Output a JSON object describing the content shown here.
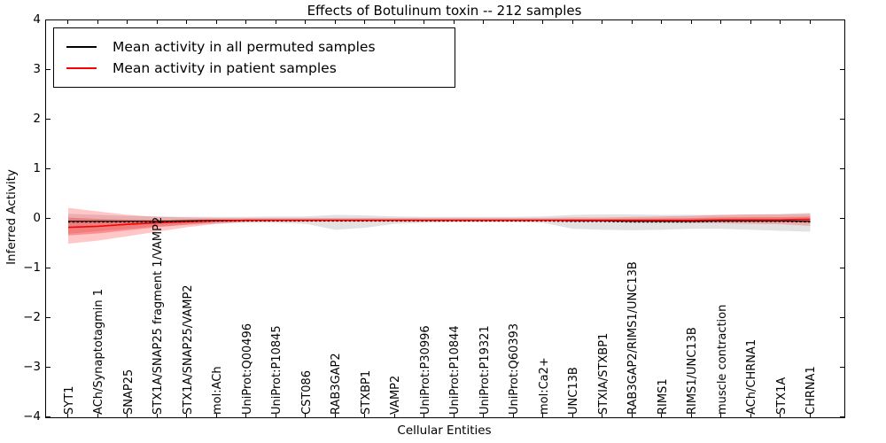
{
  "title": "Effects of Botulinum toxin -- 212 samples",
  "axes": {
    "ylabel": "Inferred Activity",
    "xlabel": "Cellular Entities",
    "ytick_labels": [
      "4",
      "3",
      "2",
      "1",
      "0",
      "−1",
      "−2",
      "−3",
      "−4"
    ],
    "ytick_values": [
      4,
      3,
      2,
      1,
      0,
      -1,
      -2,
      -3,
      -4
    ]
  },
  "legend": {
    "items": [
      {
        "label": "Mean activity in all permuted samples",
        "color": "#000000"
      },
      {
        "label": "Mean activity in patient samples",
        "color": "#ff0000"
      }
    ]
  },
  "colors": {
    "permuted_line": "#000000",
    "patient_line": "#ff0000",
    "permuted_band": "#bbbbbb",
    "patient_band": "#ff0000"
  },
  "chart_data": {
    "type": "line",
    "title": "Effects of Botulinum toxin -- 212 samples",
    "xlabel": "Cellular Entities",
    "ylabel": "Inferred Activity",
    "ylim": [
      -4,
      4
    ],
    "grid": false,
    "legend_position": "upper left",
    "categories": [
      "SYT1",
      "ACh/Synaptotagmin 1",
      "SNAP25",
      "STX1A/SNAP25 fragment 1/VAMP2",
      "STX1A/SNAP25/VAMP2",
      "mol:ACh",
      "UniProt:Q00496",
      "UniProt:P10845",
      "CST086",
      "RAB3GAP2",
      "STXBP1",
      "VAMP2",
      "UniProt:P30996",
      "UniProt:P10844",
      "UniProt:P19321",
      "UniProt:Q60393",
      "mol:Ca2+",
      "UNC13B",
      "STXIA/STXBP1",
      "RAB3GAP2/RIMS1/UNC13B",
      "RIMS1",
      "RIMS1/UNC13B",
      "muscle contraction",
      "ACh/CHRNA1",
      "STX1A",
      "CHRNA1"
    ],
    "series": [
      {
        "name": "Mean activity in all permuted samples",
        "color": "#000000",
        "values": [
          -0.05,
          -0.05,
          -0.05,
          -0.05,
          -0.04,
          -0.03,
          -0.03,
          -0.03,
          -0.03,
          -0.03,
          -0.03,
          -0.03,
          -0.03,
          -0.03,
          -0.03,
          -0.03,
          -0.03,
          -0.04,
          -0.04,
          -0.05,
          -0.05,
          -0.05,
          -0.04,
          -0.04,
          -0.04,
          -0.05
        ]
      },
      {
        "name": "Mean activity in patient samples",
        "color": "#ff0000",
        "values": [
          -0.17,
          -0.15,
          -0.11,
          -0.08,
          -0.06,
          -0.04,
          -0.03,
          -0.03,
          -0.03,
          -0.03,
          -0.03,
          -0.03,
          -0.03,
          -0.03,
          -0.03,
          -0.03,
          -0.03,
          -0.03,
          -0.03,
          -0.03,
          -0.03,
          -0.03,
          -0.02,
          -0.02,
          -0.02,
          -0.01
        ]
      }
    ],
    "bands": [
      {
        "name": "permuted-confidence-band",
        "color": "#bbbbbb",
        "opacity": 0.42,
        "upper": [
          0.1,
          0.08,
          0.06,
          0.05,
          0.04,
          0.04,
          0.04,
          0.05,
          0.05,
          0.08,
          0.07,
          0.05,
          0.04,
          0.04,
          0.04,
          0.04,
          0.05,
          0.08,
          0.09,
          0.09,
          0.08,
          0.08,
          0.08,
          0.09,
          0.1,
          0.12
        ],
        "lower": [
          -0.3,
          -0.25,
          -0.2,
          -0.15,
          -0.12,
          -0.1,
          -0.08,
          -0.08,
          -0.1,
          -0.22,
          -0.18,
          -0.1,
          -0.08,
          -0.07,
          -0.07,
          -0.07,
          -0.08,
          -0.2,
          -0.22,
          -0.23,
          -0.22,
          -0.2,
          -0.2,
          -0.22,
          -0.24,
          -0.26
        ]
      },
      {
        "name": "patient-confidence-band",
        "color": "#ff0000",
        "opacity": 0.22,
        "upper": [
          0.22,
          0.15,
          0.08,
          0.04,
          0.03,
          0.02,
          0.02,
          0.02,
          0.02,
          0.02,
          0.02,
          0.02,
          0.02,
          0.02,
          0.02,
          0.02,
          0.02,
          0.03,
          0.03,
          0.04,
          0.05,
          0.06,
          0.08,
          0.09,
          0.09,
          0.1
        ],
        "lower": [
          -0.5,
          -0.44,
          -0.35,
          -0.26,
          -0.17,
          -0.1,
          -0.06,
          -0.05,
          -0.05,
          -0.05,
          -0.05,
          -0.04,
          -0.04,
          -0.04,
          -0.04,
          -0.04,
          -0.04,
          -0.05,
          -0.05,
          -0.06,
          -0.07,
          -0.08,
          -0.09,
          -0.1,
          -0.11,
          -0.14
        ]
      }
    ]
  }
}
